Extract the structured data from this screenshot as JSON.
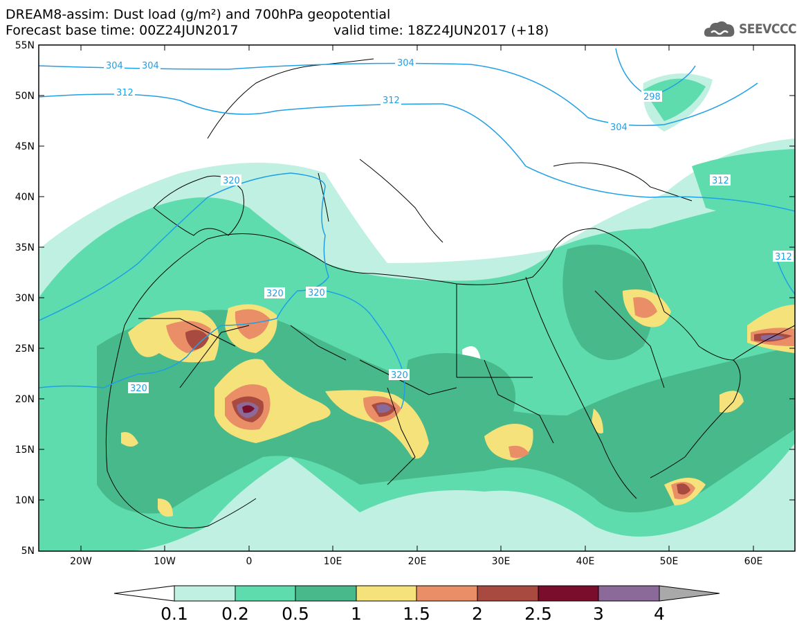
{
  "title": {
    "line1": "DREAM8-assim: Dust load (g/m²) and 700hPa geopotential",
    "base_time": "Forecast base time: 00Z24JUN2017",
    "valid_time": "valid time: 18Z24JUN2017 (+18)"
  },
  "logo": {
    "icon": "cloud-icon",
    "text": "SEEVCCC"
  },
  "axes": {
    "lat_labels": [
      "55N",
      "50N",
      "45N",
      "40N",
      "35N",
      "30N",
      "25N",
      "20N",
      "15N",
      "10N",
      "5N"
    ],
    "lon_labels": [
      "20W",
      "10W",
      "0",
      "10E",
      "20E",
      "30E",
      "40E",
      "50E",
      "60E"
    ]
  },
  "contours": {
    "labels": [
      "304",
      "304",
      "304",
      "304",
      "298",
      "312",
      "312",
      "312",
      "312",
      "320",
      "320",
      "320",
      "320",
      "320"
    ]
  },
  "colorbar": {
    "levels": [
      "0.1",
      "0.2",
      "0.5",
      "1",
      "1.5",
      "2",
      "2.5",
      "3",
      "4"
    ],
    "colors": [
      "#ffffff",
      "#bff0e2",
      "#5edcad",
      "#47b98a",
      "#f6e27a",
      "#e98e66",
      "#a84a40",
      "#7a0d2c",
      "#8b6a9a",
      "#a9a9a9"
    ]
  },
  "contour_color": "#1f9fe6"
}
